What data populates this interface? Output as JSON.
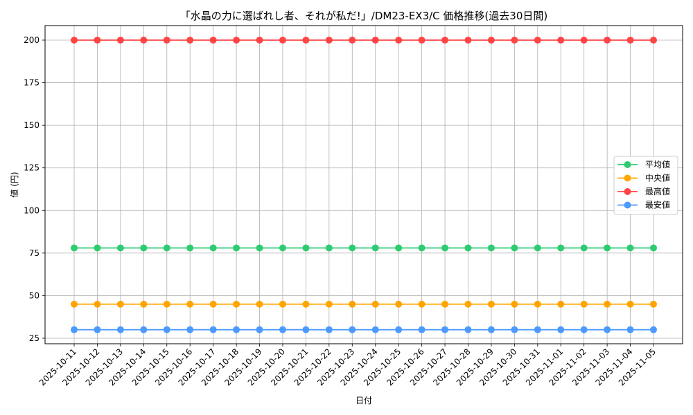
{
  "chart_data": {
    "type": "line",
    "title": "「水晶の力に選ばれし者、それが私だ!」/DM23-EX3/C 価格推移(過去30日間)",
    "xlabel": "日付",
    "ylabel": "値 (円)",
    "ylim": [
      21,
      208
    ],
    "yticks": [
      25,
      50,
      75,
      100,
      125,
      150,
      175,
      200
    ],
    "grid": true,
    "legend_position": "center right",
    "x": [
      "2025-10-11",
      "2025-10-12",
      "2025-10-13",
      "2025-10-14",
      "2025-10-15",
      "2025-10-16",
      "2025-10-17",
      "2025-10-18",
      "2025-10-19",
      "2025-10-20",
      "2025-10-21",
      "2025-10-22",
      "2025-10-23",
      "2025-10-24",
      "2025-10-25",
      "2025-10-26",
      "2025-10-27",
      "2025-10-28",
      "2025-10-29",
      "2025-10-30",
      "2025-10-31",
      "2025-11-01",
      "2025-11-02",
      "2025-11-03",
      "2025-11-04",
      "2025-11-05"
    ],
    "series": [
      {
        "name": "平均値",
        "color": "#2ecc71",
        "values": [
          78,
          78,
          78,
          78,
          78,
          78,
          78,
          78,
          78,
          78,
          78,
          78,
          78,
          78,
          78,
          78,
          78,
          78,
          78,
          78,
          78,
          78,
          78,
          78,
          78,
          78
        ]
      },
      {
        "name": "中央値",
        "color": "#ffa500",
        "values": [
          45,
          45,
          45,
          45,
          45,
          45,
          45,
          45,
          45,
          45,
          45,
          45,
          45,
          45,
          45,
          45,
          45,
          45,
          45,
          45,
          45,
          45,
          45,
          45,
          45,
          45
        ]
      },
      {
        "name": "最高値",
        "color": "#ff4444",
        "values": [
          200,
          200,
          200,
          200,
          200,
          200,
          200,
          200,
          200,
          200,
          200,
          200,
          200,
          200,
          200,
          200,
          200,
          200,
          200,
          200,
          200,
          200,
          200,
          200,
          200,
          200
        ]
      },
      {
        "name": "最安値",
        "color": "#4c9aff",
        "values": [
          30,
          30,
          30,
          30,
          30,
          30,
          30,
          30,
          30,
          30,
          30,
          30,
          30,
          30,
          30,
          30,
          30,
          30,
          30,
          30,
          30,
          30,
          30,
          30,
          30,
          30
        ]
      }
    ]
  }
}
